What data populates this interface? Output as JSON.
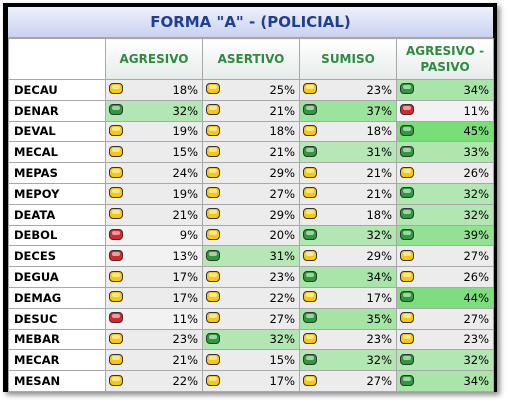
{
  "title": "FORMA \"A\"  - (POLICIAL)",
  "columns": [
    "AGRESIVO",
    "ASERTIVO",
    "SUMISO",
    "AGRESIVO -\nPASIVO"
  ],
  "status_colors": {
    "yellow": "#f6c90e",
    "green": "#2e9a3c",
    "red": "#d8262a"
  },
  "rows": [
    {
      "name": "DECAU",
      "cells": [
        {
          "value": "18%",
          "status": "yellow"
        },
        {
          "value": "25%",
          "status": "yellow"
        },
        {
          "value": "23%",
          "status": "yellow"
        },
        {
          "value": "34%",
          "status": "green"
        }
      ]
    },
    {
      "name": "DENAR",
      "cells": [
        {
          "value": "32%",
          "status": "green"
        },
        {
          "value": "21%",
          "status": "yellow"
        },
        {
          "value": "37%",
          "status": "green"
        },
        {
          "value": "11%",
          "status": "red"
        }
      ]
    },
    {
      "name": "DEVAL",
      "cells": [
        {
          "value": "19%",
          "status": "yellow"
        },
        {
          "value": "18%",
          "status": "yellow"
        },
        {
          "value": "18%",
          "status": "yellow"
        },
        {
          "value": "45%",
          "status": "green"
        }
      ]
    },
    {
      "name": "MECAL",
      "cells": [
        {
          "value": "15%",
          "status": "yellow"
        },
        {
          "value": "21%",
          "status": "yellow"
        },
        {
          "value": "31%",
          "status": "green"
        },
        {
          "value": "33%",
          "status": "green"
        }
      ]
    },
    {
      "name": "MEPAS",
      "cells": [
        {
          "value": "24%",
          "status": "yellow"
        },
        {
          "value": "29%",
          "status": "yellow"
        },
        {
          "value": "21%",
          "status": "yellow"
        },
        {
          "value": "26%",
          "status": "yellow"
        }
      ]
    },
    {
      "name": "MEPOY",
      "cells": [
        {
          "value": "19%",
          "status": "yellow"
        },
        {
          "value": "27%",
          "status": "yellow"
        },
        {
          "value": "21%",
          "status": "yellow"
        },
        {
          "value": "32%",
          "status": "green"
        }
      ]
    },
    {
      "name": "DEATA",
      "cells": [
        {
          "value": "21%",
          "status": "yellow"
        },
        {
          "value": "29%",
          "status": "yellow"
        },
        {
          "value": "18%",
          "status": "yellow"
        },
        {
          "value": "32%",
          "status": "green"
        }
      ]
    },
    {
      "name": "DEBOL",
      "cells": [
        {
          "value": "9%",
          "status": "red"
        },
        {
          "value": "20%",
          "status": "yellow"
        },
        {
          "value": "32%",
          "status": "green"
        },
        {
          "value": "39%",
          "status": "green"
        }
      ]
    },
    {
      "name": "DECES",
      "cells": [
        {
          "value": "13%",
          "status": "red"
        },
        {
          "value": "31%",
          "status": "green"
        },
        {
          "value": "29%",
          "status": "yellow"
        },
        {
          "value": "27%",
          "status": "yellow"
        }
      ]
    },
    {
      "name": "DEGUA",
      "cells": [
        {
          "value": "17%",
          "status": "yellow"
        },
        {
          "value": "23%",
          "status": "yellow"
        },
        {
          "value": "34%",
          "status": "green"
        },
        {
          "value": "26%",
          "status": "yellow"
        }
      ]
    },
    {
      "name": "DEMAG",
      "cells": [
        {
          "value": "17%",
          "status": "yellow"
        },
        {
          "value": "22%",
          "status": "yellow"
        },
        {
          "value": "17%",
          "status": "yellow"
        },
        {
          "value": "44%",
          "status": "green"
        }
      ]
    },
    {
      "name": "DESUC",
      "cells": [
        {
          "value": "11%",
          "status": "red"
        },
        {
          "value": "27%",
          "status": "yellow"
        },
        {
          "value": "35%",
          "status": "green"
        },
        {
          "value": "27%",
          "status": "yellow"
        }
      ]
    },
    {
      "name": "MEBAR",
      "cells": [
        {
          "value": "23%",
          "status": "yellow"
        },
        {
          "value": "32%",
          "status": "green"
        },
        {
          "value": "23%",
          "status": "yellow"
        },
        {
          "value": "23%",
          "status": "yellow"
        }
      ]
    },
    {
      "name": "MECAR",
      "cells": [
        {
          "value": "21%",
          "status": "yellow"
        },
        {
          "value": "15%",
          "status": "yellow"
        },
        {
          "value": "32%",
          "status": "green"
        },
        {
          "value": "32%",
          "status": "green"
        }
      ]
    },
    {
      "name": "MESAN",
      "cells": [
        {
          "value": "22%",
          "status": "yellow"
        },
        {
          "value": "17%",
          "status": "yellow"
        },
        {
          "value": "27%",
          "status": "yellow"
        },
        {
          "value": "34%",
          "status": "green"
        }
      ]
    }
  ]
}
